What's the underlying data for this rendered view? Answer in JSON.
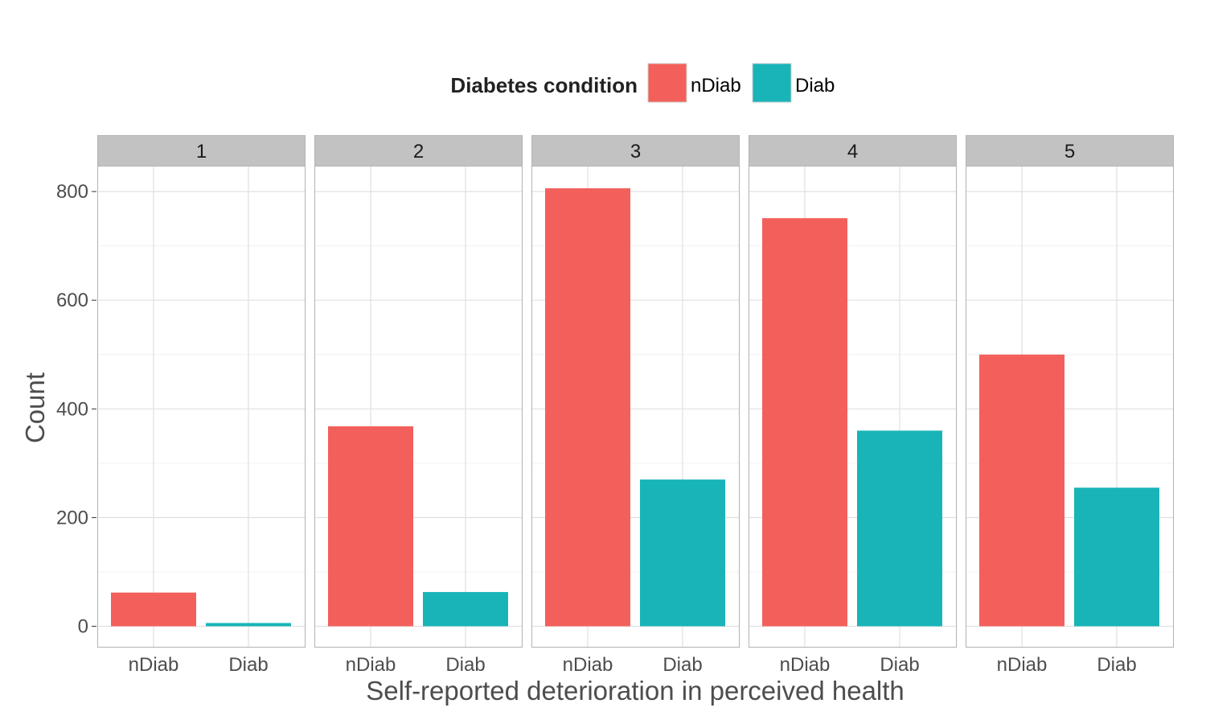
{
  "chart_data": {
    "type": "bar",
    "facet_variable_values": [
      "1",
      "2",
      "3",
      "4",
      "5"
    ],
    "categories": [
      "nDiab",
      "Diab"
    ],
    "facets": [
      {
        "label": "1",
        "values": [
          62,
          6
        ]
      },
      {
        "label": "2",
        "values": [
          368,
          63
        ]
      },
      {
        "label": "3",
        "values": [
          806,
          270
        ]
      },
      {
        "label": "4",
        "values": [
          751,
          360
        ]
      },
      {
        "label": "5",
        "values": [
          500,
          255
        ]
      }
    ],
    "xlabel": "Self-reported deterioration in perceived health",
    "ylabel": "Count",
    "ylim": [
      0,
      840
    ],
    "yticks": [
      0,
      200,
      400,
      600,
      800
    ],
    "legend": {
      "title": "Diabetes condition",
      "position": "top",
      "entries": [
        {
          "label": "nDiab",
          "color": "#F3605B"
        },
        {
          "label": "Diab",
          "color": "#18B4B8"
        }
      ]
    },
    "grid": true
  },
  "colors": {
    "strip_background": "#C2C2C2",
    "panel_border": "#B3B3B3",
    "grid_major": "#E0E0E0",
    "grid_minor": "#F0F0F0"
  }
}
